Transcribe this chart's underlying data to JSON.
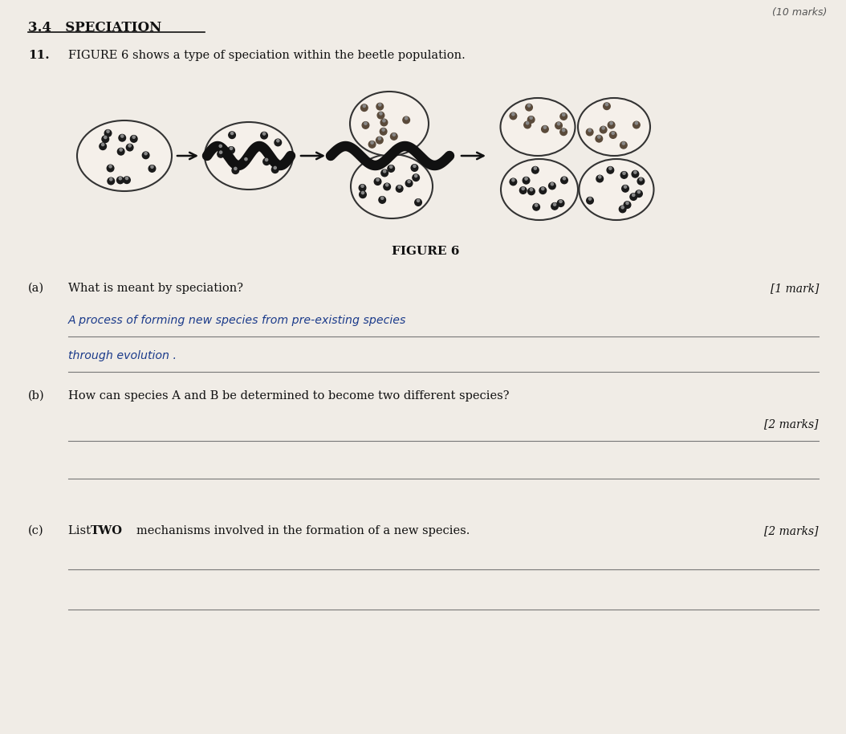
{
  "bg_color": "#d8d0c8",
  "paper_color": "#f0ece6",
  "title": "3.4   SPECIATION",
  "question_num": "11.",
  "question_text": "FIGURE 6 shows a type of speciation within the beetle population.",
  "figure_label": "FIGURE 6",
  "part_a_label": "(a)",
  "part_a_question": "What is meant by speciation?",
  "part_a_mark": "[1 mark]",
  "part_a_answer_line1": "A process of forming new species from pre-existing species",
  "part_a_answer_line2": "through evolution .",
  "part_b_label": "(b)",
  "part_b_question": "How can species A and B be determined to become two different species?",
  "part_b_mark": "[2 marks]",
  "part_c_label": "(c)",
  "part_c_question": "List TWO mechanisms involved in the formation of a new species.",
  "part_c_mark": "[2 marks]",
  "top_right_text": "(10 marks)"
}
